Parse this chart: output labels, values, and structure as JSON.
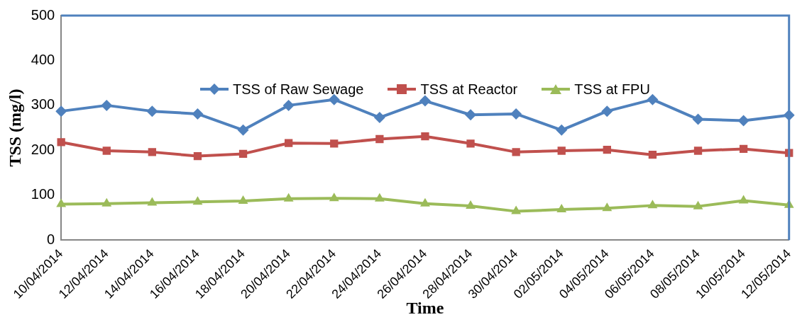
{
  "chart_data": {
    "type": "line",
    "xlabel": "Time",
    "ylabel": "TSS (mg/l)",
    "categories": [
      "10/04/2014",
      "12/04/2014",
      "14/04/2014",
      "16/04/2014",
      "18/04/2014",
      "20/04/2014",
      "22/04/2014",
      "24/04/2014",
      "26/04/2014",
      "28/04/2014",
      "30/04/2014",
      "02/05/2014",
      "04/05/2014",
      "06/05/2014",
      "08/05/2014",
      "10/05/2014",
      "12/05/2014"
    ],
    "series": [
      {
        "name": "TSS of Raw Sewage",
        "color": "#4f81bd",
        "marker": "diamond",
        "values": [
          287,
          300,
          287,
          281,
          245,
          300,
          313,
          273,
          310,
          279,
          281,
          245,
          287,
          313,
          269,
          266,
          278
        ]
      },
      {
        "name": "TSS at Reactor",
        "color": "#c0504d",
        "marker": "square",
        "values": [
          218,
          199,
          196,
          187,
          192,
          216,
          215,
          225,
          231,
          215,
          196,
          199,
          201,
          190,
          199,
          203,
          194
        ]
      },
      {
        "name": "TSS at FPU",
        "color": "#9bbb59",
        "marker": "triangle",
        "values": [
          80,
          81,
          83,
          85,
          87,
          92,
          93,
          92,
          81,
          76,
          64,
          68,
          71,
          77,
          75,
          88,
          78
        ]
      }
    ],
    "ylim": [
      0,
      500
    ],
    "yticks": [
      0,
      100,
      200,
      300,
      400,
      500
    ],
    "grid": false,
    "legend": "top",
    "line_style": "solid"
  }
}
